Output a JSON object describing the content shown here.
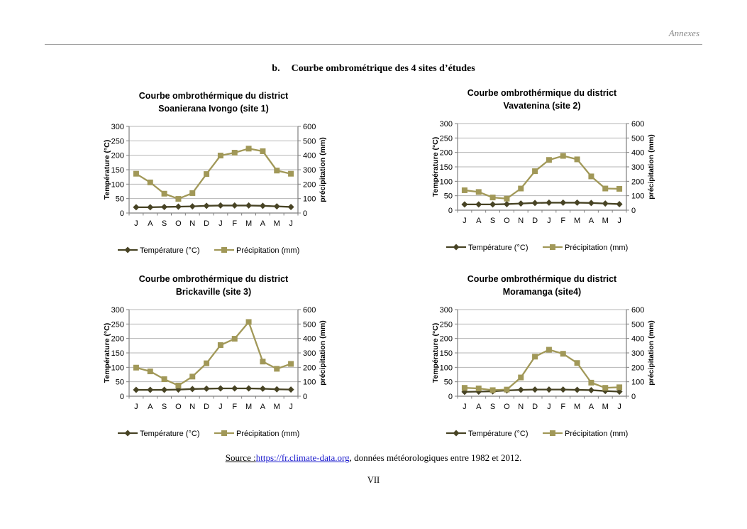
{
  "page": {
    "header": {
      "annexes_label": "Annexes"
    },
    "heading": {
      "number": "b.",
      "text": "Courbe ombrométrique des 4 sites d’études"
    },
    "footer": {
      "source_label": "Source :",
      "source_link": "https://fr.climate-data.org",
      "source_rest": ", données météorologiques entre 1982 et 2012.",
      "page_number": "VII"
    }
  },
  "colors": {
    "temperature": "#474324",
    "precipitation": "#A19858",
    "grid": "#b5b5b5",
    "axis": "#7f7f7f",
    "tick_label": "#000000",
    "link": "#1414cc"
  },
  "chart_data": [
    {
      "type": "line",
      "title_lines": [
        "Courbe ombrothérmique  du district",
        "Soanierana Ivongo (site 1)"
      ],
      "categories": [
        "J",
        "A",
        "S",
        "O",
        "N",
        "D",
        "J",
        "F",
        "M",
        "A",
        "M",
        "J"
      ],
      "ylabel_left": "Température (°C)",
      "ylabel_right": "précipitation (mm)",
      "ylim_left": [
        0,
        300
      ],
      "yticks_left": [
        0,
        50,
        100,
        150,
        200,
        250,
        300
      ],
      "ylim_right": [
        0,
        600
      ],
      "yticks_right": [
        0,
        100,
        200,
        300,
        400,
        500,
        600
      ],
      "grid": true,
      "legend_position": "bottom",
      "series": [
        {
          "name": "Température (°C)",
          "axis": "left",
          "marker": "diamond",
          "color": "#474324",
          "values": [
            20,
            20,
            21,
            22,
            23,
            25,
            26,
            26,
            26,
            25,
            23,
            21
          ]
        },
        {
          "name": "Précipitation (mm)",
          "axis": "right",
          "marker": "square",
          "color": "#A19858",
          "values": [
            272,
            212,
            134,
            98,
            138,
            270,
            398,
            418,
            446,
            428,
            294,
            272
          ]
        }
      ]
    },
    {
      "type": "line",
      "title_lines": [
        "Courbe ombrothérmique  du district",
        "Vavatenina (site 2)"
      ],
      "categories": [
        "J",
        "A",
        "S",
        "O",
        "N",
        "D",
        "J",
        "F",
        "M",
        "A",
        "M",
        "J"
      ],
      "ylabel_left": "Température (°C)",
      "ylabel_right": "précipitation (mm)",
      "ylim_left": [
        0,
        300
      ],
      "yticks_left": [
        0,
        50,
        100,
        150,
        200,
        250,
        300
      ],
      "ylim_right": [
        0,
        600
      ],
      "yticks_right": [
        0,
        100,
        200,
        300,
        400,
        500,
        600
      ],
      "grid": true,
      "legend_position": "bottom",
      "series": [
        {
          "name": "Température (°C)",
          "axis": "left",
          "marker": "diamond",
          "color": "#474324",
          "values": [
            20,
            20,
            20,
            21,
            23,
            25,
            26,
            26,
            26,
            25,
            23,
            21
          ]
        },
        {
          "name": "Précipitation (mm)",
          "axis": "right",
          "marker": "square",
          "color": "#A19858",
          "values": [
            138,
            126,
            88,
            80,
            150,
            270,
            348,
            376,
            352,
            234,
            150,
            148
          ]
        }
      ]
    },
    {
      "type": "line",
      "title_lines": [
        "Courbe ombrothérmique  du district",
        "Brickaville (site 3)"
      ],
      "categories": [
        "J",
        "A",
        "S",
        "O",
        "N",
        "D",
        "J",
        "F",
        "M",
        "A",
        "M",
        "J"
      ],
      "ylabel_left": "Température (°C)",
      "ylabel_right": "précipitation (mm)",
      "ylim_left": [
        0,
        300
      ],
      "yticks_left": [
        0,
        50,
        100,
        150,
        200,
        250,
        300
      ],
      "ylim_right": [
        0,
        600
      ],
      "yticks_right": [
        0,
        100,
        200,
        300,
        400,
        500,
        600
      ],
      "grid": true,
      "legend_position": "bottom",
      "series": [
        {
          "name": "Température (°C)",
          "axis": "left",
          "marker": "diamond",
          "color": "#474324",
          "values": [
            22,
            22,
            22,
            23,
            25,
            26,
            27,
            27,
            27,
            26,
            24,
            23
          ]
        },
        {
          "name": "Précipitation (mm)",
          "axis": "right",
          "marker": "square",
          "color": "#A19858",
          "values": [
            198,
            172,
            118,
            74,
            136,
            228,
            354,
            398,
            514,
            240,
            190,
            224
          ]
        }
      ]
    },
    {
      "type": "line",
      "title_lines": [
        "Courbe ombrothérmique du district",
        "Moramanga (site4)"
      ],
      "categories": [
        "J",
        "A",
        "S",
        "O",
        "N",
        "D",
        "J",
        "F",
        "M",
        "A",
        "M",
        "J"
      ],
      "ylabel_left": "Température (°C)",
      "ylabel_right": "précipitation (mm)",
      "ylim_left": [
        0,
        300
      ],
      "yticks_left": [
        0,
        50,
        100,
        150,
        200,
        250,
        300
      ],
      "ylim_right": [
        0,
        600
      ],
      "yticks_right": [
        0,
        100,
        200,
        300,
        400,
        500,
        600
      ],
      "grid": true,
      "legend_position": "bottom",
      "series": [
        {
          "name": "Température (°C)",
          "axis": "left",
          "marker": "diamond",
          "color": "#474324",
          "values": [
            15,
            16,
            17,
            20,
            22,
            23,
            23,
            23,
            22,
            21,
            18,
            16
          ]
        },
        {
          "name": "Précipitation (mm)",
          "axis": "right",
          "marker": "square",
          "color": "#A19858",
          "values": [
            58,
            54,
            42,
            46,
            130,
            274,
            322,
            294,
            230,
            94,
            58,
            62
          ]
        }
      ]
    }
  ]
}
